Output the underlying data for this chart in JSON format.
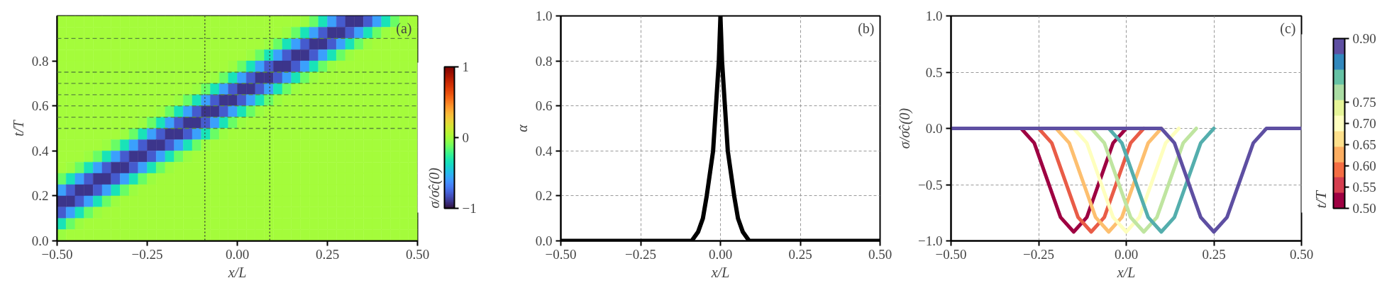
{
  "chart_data": [
    {
      "type": "heatmap",
      "xlabel": "x/L",
      "ylabel": "t/T",
      "clabel": "σ/σ̂c(0)",
      "annotations": [
        "(a)"
      ],
      "xlim": [
        -0.5,
        0.5
      ],
      "ylim": [
        0,
        1
      ],
      "xticks": [
        {
          "value": -0.5,
          "label": "−0.50"
        },
        {
          "value": -0.25,
          "label": "−0.25"
        },
        {
          "value": 0,
          "label": "0.00"
        },
        {
          "value": 0.25,
          "label": "0.25"
        },
        {
          "value": 0.5,
          "label": "0.50"
        }
      ],
      "yticks": [
        {
          "value": 0,
          "label": "0.0"
        },
        {
          "value": 0.2,
          "label": "0.2"
        },
        {
          "value": 0.4,
          "label": "0.4"
        },
        {
          "value": 0.6,
          "label": "0.6"
        },
        {
          "value": 0.8,
          "label": "0.8"
        }
      ],
      "clim": [
        -1,
        1
      ],
      "cticks": [
        {
          "value": -1,
          "label": "−1"
        },
        0,
        1
      ],
      "ref_lines": [
        {
          "axis": "y",
          "value": 0.5,
          "color": "#5a8a3a",
          "line_style": "dashed"
        },
        {
          "axis": "y",
          "value": 0.55,
          "color": "#5a8a3a",
          "line_style": "dashed"
        },
        {
          "axis": "y",
          "value": 0.6,
          "color": "#5a8a3a",
          "line_style": "dashed"
        },
        {
          "axis": "y",
          "value": 0.65,
          "color": "#5a8a3a",
          "line_style": "dashed"
        },
        {
          "axis": "y",
          "value": 0.7,
          "color": "#5a8a3a",
          "line_style": "dashed"
        },
        {
          "axis": "y",
          "value": 0.75,
          "color": "#5a8a3a",
          "line_style": "dashed"
        },
        {
          "axis": "y",
          "value": 0.9,
          "color": "#5a8a3a",
          "line_style": "dashed"
        },
        {
          "axis": "x",
          "value": -0.09,
          "color": "#333333",
          "line_style": "dotted"
        },
        {
          "axis": "x",
          "value": 0.09,
          "color": "#333333",
          "line_style": "dotted"
        }
      ],
      "cells": [
        [
          0,
          0,
          0,
          0,
          0,
          0,
          0,
          0,
          0,
          0,
          0,
          0,
          0,
          0,
          0,
          0,
          0,
          0,
          0,
          0,
          0,
          0,
          0,
          0,
          0,
          0,
          0,
          -0.02,
          -0.13,
          -0.34,
          -0.58,
          -0.79,
          -0.9,
          -0.9,
          -0.79,
          -0.58,
          -0.34,
          -0.13,
          -0.02,
          0
        ],
        [
          0,
          0,
          0,
          0,
          0,
          0,
          0,
          0,
          0,
          0,
          0,
          0,
          0,
          0,
          0,
          0,
          0,
          0,
          0,
          0,
          0,
          0,
          0,
          0,
          0,
          -0.02,
          -0.13,
          -0.34,
          -0.58,
          -0.79,
          -0.9,
          -0.9,
          -0.79,
          -0.58,
          -0.34,
          -0.13,
          -0.02,
          0,
          0,
          0
        ],
        [
          0,
          0,
          0,
          0,
          0,
          0,
          0,
          0,
          0,
          0,
          0,
          0,
          0,
          0,
          0,
          0,
          0,
          0,
          0,
          0,
          0,
          0,
          0,
          -0.02,
          -0.13,
          -0.34,
          -0.58,
          -0.79,
          -0.9,
          -0.9,
          -0.79,
          -0.58,
          -0.34,
          -0.13,
          -0.02,
          0,
          0,
          0,
          0,
          0
        ],
        [
          0,
          0,
          0,
          0,
          0,
          0,
          0,
          0,
          0,
          0,
          0,
          0,
          0,
          0,
          0,
          0,
          0,
          0,
          0,
          0,
          0,
          -0.02,
          -0.13,
          -0.34,
          -0.58,
          -0.79,
          -0.9,
          -0.9,
          -0.79,
          -0.58,
          -0.34,
          -0.13,
          -0.02,
          0,
          0,
          0,
          0,
          0,
          0,
          0
        ],
        [
          0,
          0,
          0,
          0,
          0,
          0,
          0,
          0,
          0,
          0,
          0,
          0,
          0,
          0,
          0,
          0,
          0,
          0,
          0,
          -0.02,
          -0.13,
          -0.34,
          -0.58,
          -0.79,
          -0.9,
          -0.9,
          -0.79,
          -0.58,
          -0.34,
          -0.13,
          -0.02,
          0,
          0,
          0,
          0,
          0,
          0,
          0,
          0,
          0
        ],
        [
          0,
          0,
          0,
          0,
          0,
          0,
          0,
          0,
          0,
          0,
          0,
          0,
          0,
          0,
          0,
          0,
          0,
          -0.02,
          -0.13,
          -0.34,
          -0.58,
          -0.79,
          -0.9,
          -0.9,
          -0.79,
          -0.58,
          -0.34,
          -0.13,
          -0.02,
          0,
          0,
          0,
          0,
          0,
          0,
          0,
          0,
          0,
          0,
          0
        ],
        [
          0,
          0,
          0,
          0,
          0,
          0,
          0,
          0,
          0,
          0,
          0,
          0,
          0,
          0,
          0,
          -0.02,
          -0.13,
          -0.34,
          -0.58,
          -0.79,
          -0.9,
          -0.9,
          -0.79,
          -0.58,
          -0.34,
          -0.13,
          -0.02,
          0,
          0,
          0,
          0,
          0,
          0,
          0,
          0,
          0,
          0,
          0,
          0,
          0
        ],
        [
          0,
          0,
          0,
          0,
          0,
          0,
          0,
          0,
          0,
          0,
          0,
          0,
          0,
          -0.02,
          -0.13,
          -0.34,
          -0.58,
          -0.79,
          -0.9,
          -0.9,
          -0.79,
          -0.58,
          -0.34,
          -0.13,
          -0.02,
          0,
          0,
          0,
          0,
          0,
          0,
          0,
          0,
          0,
          0,
          0,
          0,
          0,
          0,
          0
        ],
        [
          0,
          0,
          0,
          0,
          0,
          0,
          0,
          0,
          0,
          0,
          0,
          -0.02,
          -0.13,
          -0.34,
          -0.58,
          -0.79,
          -0.9,
          -0.9,
          -0.79,
          -0.58,
          -0.34,
          -0.13,
          -0.02,
          0,
          0,
          0,
          0,
          0,
          0,
          0,
          0,
          0,
          0,
          0,
          0,
          0,
          0,
          0,
          0,
          0
        ],
        [
          0,
          0,
          0,
          0,
          0,
          0,
          0,
          0,
          0,
          -0.02,
          -0.13,
          -0.34,
          -0.58,
          -0.79,
          -0.9,
          -0.9,
          -0.79,
          -0.58,
          -0.34,
          -0.13,
          -0.02,
          0,
          0,
          0,
          0,
          0,
          0,
          0,
          0,
          0,
          0,
          0,
          0,
          0,
          0,
          0,
          0,
          0,
          0,
          0
        ],
        [
          0,
          0,
          0,
          0,
          0,
          0,
          0,
          -0.02,
          -0.13,
          -0.34,
          -0.58,
          -0.79,
          -0.9,
          -0.9,
          -0.79,
          -0.58,
          -0.34,
          -0.13,
          -0.02,
          0,
          0,
          0,
          0,
          0,
          0,
          0,
          0,
          0,
          0,
          0,
          0,
          0,
          0,
          0,
          0,
          0,
          0,
          0,
          0,
          0
        ],
        [
          0,
          0,
          0,
          0,
          0,
          -0.02,
          -0.13,
          -0.34,
          -0.58,
          -0.79,
          -0.9,
          -0.9,
          -0.79,
          -0.58,
          -0.34,
          -0.13,
          -0.02,
          0,
          0,
          0,
          0,
          0,
          0,
          0,
          0,
          0,
          0,
          0,
          0,
          0,
          0,
          0,
          0,
          0,
          0,
          0,
          0,
          0,
          0,
          0
        ],
        [
          0,
          0,
          0,
          -0.02,
          -0.13,
          -0.34,
          -0.58,
          -0.79,
          -0.9,
          -0.9,
          -0.79,
          -0.58,
          -0.34,
          -0.13,
          -0.02,
          0,
          0,
          0,
          0,
          0,
          0,
          0,
          0,
          0,
          0,
          0,
          0,
          0,
          0,
          0,
          0,
          0,
          0,
          0,
          0,
          0,
          0,
          0,
          0,
          0
        ],
        [
          0,
          -0.02,
          -0.13,
          -0.34,
          -0.58,
          -0.79,
          -0.9,
          -0.9,
          -0.79,
          -0.58,
          -0.34,
          -0.13,
          -0.02,
          0,
          0,
          0,
          0,
          0,
          0,
          0,
          0,
          0,
          0,
          0,
          0,
          0,
          0,
          0,
          0,
          0,
          0,
          0,
          0,
          0,
          0,
          0,
          0,
          0,
          0,
          0
        ],
        [
          -0.13,
          -0.34,
          -0.58,
          -0.79,
          -0.9,
          -0.9,
          -0.79,
          -0.58,
          -0.34,
          -0.13,
          -0.02,
          0,
          0,
          0,
          0,
          0,
          0,
          0,
          0,
          0,
          0,
          0,
          0,
          0,
          0,
          0,
          0,
          0,
          0,
          0,
          0,
          0,
          0,
          0,
          0,
          0,
          0,
          0,
          0,
          0
        ],
        [
          -0.58,
          -0.79,
          -0.9,
          -0.9,
          -0.79,
          -0.58,
          -0.34,
          -0.13,
          -0.02,
          0,
          0,
          0,
          0,
          0,
          0,
          0,
          0,
          0,
          0,
          0,
          0,
          0,
          0,
          0,
          0,
          0,
          0,
          0,
          0,
          0,
          0,
          0,
          0,
          0,
          0,
          0,
          0,
          0,
          0,
          0
        ],
        [
          -0.9,
          -0.9,
          -0.79,
          -0.58,
          -0.34,
          -0.13,
          -0.02,
          0,
          0,
          0,
          0,
          0,
          0,
          0,
          0,
          0,
          0,
          0,
          0,
          0,
          0,
          0,
          0,
          0,
          0,
          0,
          0,
          0,
          0,
          0,
          0,
          0,
          0,
          0,
          0,
          0,
          0,
          0,
          0,
          0
        ],
        [
          -0.79,
          -0.58,
          -0.34,
          -0.13,
          -0.02,
          0,
          0,
          0,
          0,
          0,
          0,
          0,
          0,
          0,
          0,
          0,
          0,
          0,
          0,
          0,
          0,
          0,
          0,
          0,
          0,
          0,
          0,
          0,
          0,
          0,
          0,
          0,
          0,
          0,
          0,
          0,
          0,
          0,
          0,
          0
        ],
        [
          -0.34,
          -0.13,
          -0.02,
          0,
          0,
          0,
          0,
          0,
          0,
          0,
          0,
          0,
          0,
          0,
          0,
          0,
          0,
          0,
          0,
          0,
          0,
          0,
          0,
          0,
          0,
          0,
          0,
          0,
          0,
          0,
          0,
          0,
          0,
          0,
          0,
          0,
          0,
          0,
          0,
          0
        ],
        [
          -0.02,
          0,
          0,
          0,
          0,
          0,
          0,
          0,
          0,
          0,
          0,
          0,
          0,
          0,
          0,
          0,
          0,
          0,
          0,
          0,
          0,
          0,
          0,
          0,
          0,
          0,
          0,
          0,
          0,
          0,
          0,
          0,
          0,
          0,
          0,
          0,
          0,
          0,
          0,
          0
        ]
      ]
    },
    {
      "type": "line",
      "xlabel": "x/L",
      "ylabel": "α",
      "annotations": [
        "(b)"
      ],
      "grid": true,
      "xlim": [
        -0.5,
        0.5
      ],
      "ylim": [
        0,
        1
      ],
      "xticks": [
        {
          "value": -0.5,
          "label": "−0.50"
        },
        {
          "value": -0.25,
          "label": "−0.25"
        },
        {
          "value": 0,
          "label": "0.00"
        },
        {
          "value": 0.25,
          "label": "0.25"
        },
        {
          "value": 0.5,
          "label": "0.50"
        }
      ],
      "yticks": [
        {
          "value": 0,
          "label": "0.0"
        },
        {
          "value": 0.2,
          "label": "0.2"
        },
        {
          "value": 0.4,
          "label": "0.4"
        },
        {
          "value": 0.6,
          "label": "0.6"
        },
        {
          "value": 0.8,
          "label": "0.8"
        },
        {
          "value": 1,
          "label": "1.0"
        }
      ],
      "x": [
        -0.5,
        -0.09,
        -0.07,
        -0.055,
        -0.043,
        -0.023,
        -0.014,
        -0.005,
        0,
        0.005,
        0.014,
        0.023,
        0.043,
        0.055,
        0.07,
        0.09,
        0.5
      ],
      "series": [
        {
          "color": "#000000",
          "values": [
            0,
            0,
            0.04,
            0.1,
            0.2,
            0.4,
            0.6,
            0.8,
            1,
            0.8,
            0.6,
            0.4,
            0.2,
            0.1,
            0.04,
            0,
            0
          ]
        }
      ]
    },
    {
      "type": "line",
      "xlabel": "x/L",
      "ylabel": "σ/σ̂c(0)",
      "annotations": [
        "(c)"
      ],
      "grid": true,
      "xlim": [
        -0.5,
        0.5
      ],
      "ylim": [
        -1,
        1
      ],
      "xticks": [
        {
          "value": -0.5,
          "label": "−0.50"
        },
        {
          "value": -0.25,
          "label": "−0.25"
        },
        {
          "value": 0,
          "label": "0.00"
        },
        {
          "value": 0.25,
          "label": "0.25"
        },
        {
          "value": 0.5,
          "label": "0.50"
        }
      ],
      "yticks": [
        {
          "value": -1,
          "label": "−1.0"
        },
        {
          "value": -0.5,
          "label": "−0.5"
        },
        {
          "value": 0,
          "label": "0.0"
        },
        {
          "value": 0.5,
          "label": "0.5"
        },
        {
          "value": 1,
          "label": "1.0"
        }
      ],
      "clabel": "t/T",
      "clim": [
        0.5,
        0.9
      ],
      "cticks": [
        {
          "value": 0.5,
          "label": "0.50"
        },
        {
          "value": 0.55,
          "label": "0.55"
        },
        {
          "value": 0.6,
          "label": "0.60"
        },
        {
          "value": 0.65,
          "label": "0.65"
        },
        {
          "value": 0.7,
          "label": "0.70"
        },
        {
          "value": 0.75,
          "label": "0.75"
        },
        {
          "value": 0.9,
          "label": "0.90"
        }
      ],
      "series": [
        {
          "color": "#9e0142",
          "x": [
            -0.5,
            -0.3,
            -0.2625,
            -0.225,
            -0.1875,
            -0.15,
            -0.1125,
            -0.075,
            -0.0375,
            0
          ],
          "values": [
            0,
            0,
            -0.13,
            -0.46,
            -0.79,
            -0.92,
            -0.79,
            -0.46,
            -0.13,
            0
          ]
        },
        {
          "color": "#e95c47",
          "x": [
            -0.5,
            -0.25,
            -0.2125,
            -0.175,
            -0.1375,
            -0.1,
            -0.0625,
            -0.025,
            0.0125,
            0.05
          ],
          "values": [
            0,
            0,
            -0.13,
            -0.46,
            -0.79,
            -0.92,
            -0.79,
            -0.46,
            -0.13,
            0
          ]
        },
        {
          "color": "#fdbf6f",
          "x": [
            -0.5,
            -0.2,
            -0.1625,
            -0.125,
            -0.0875,
            -0.05,
            -0.0125,
            0.025,
            0.0625,
            0.1
          ],
          "values": [
            0,
            0,
            -0.13,
            -0.46,
            -0.79,
            -0.92,
            -0.79,
            -0.46,
            -0.13,
            0
          ]
        },
        {
          "color": "#feffbe",
          "x": [
            -0.5,
            -0.15,
            -0.1125,
            -0.075,
            -0.0375,
            0,
            0.0375,
            0.075,
            0.1125,
            0.15
          ],
          "values": [
            0,
            0,
            -0.13,
            -0.46,
            -0.79,
            -0.92,
            -0.79,
            -0.46,
            -0.13,
            0
          ]
        },
        {
          "color": "#bfe5a0",
          "x": [
            -0.5,
            -0.1,
            -0.0625,
            -0.025,
            0.0125,
            0.05,
            0.0875,
            0.125,
            0.1625,
            0.2
          ],
          "values": [
            0,
            0,
            -0.13,
            -0.46,
            -0.79,
            -0.92,
            -0.79,
            -0.46,
            -0.13,
            0
          ]
        },
        {
          "color": "#54aead",
          "x": [
            -0.5,
            -0.05,
            -0.0125,
            0.025,
            0.0625,
            0.1,
            0.1375,
            0.175,
            0.2125,
            0.25
          ],
          "values": [
            0,
            0,
            -0.13,
            -0.46,
            -0.79,
            -0.92,
            -0.79,
            -0.46,
            -0.13,
            0
          ]
        },
        {
          "color": "#5e4fa2",
          "x": [
            -0.5,
            0.1,
            0.1375,
            0.175,
            0.2125,
            0.25,
            0.2875,
            0.325,
            0.3625,
            0.4,
            0.5
          ],
          "values": [
            0,
            0,
            -0.13,
            -0.46,
            -0.79,
            -0.92,
            -0.79,
            -0.46,
            -0.13,
            0,
            0
          ]
        }
      ]
    }
  ]
}
